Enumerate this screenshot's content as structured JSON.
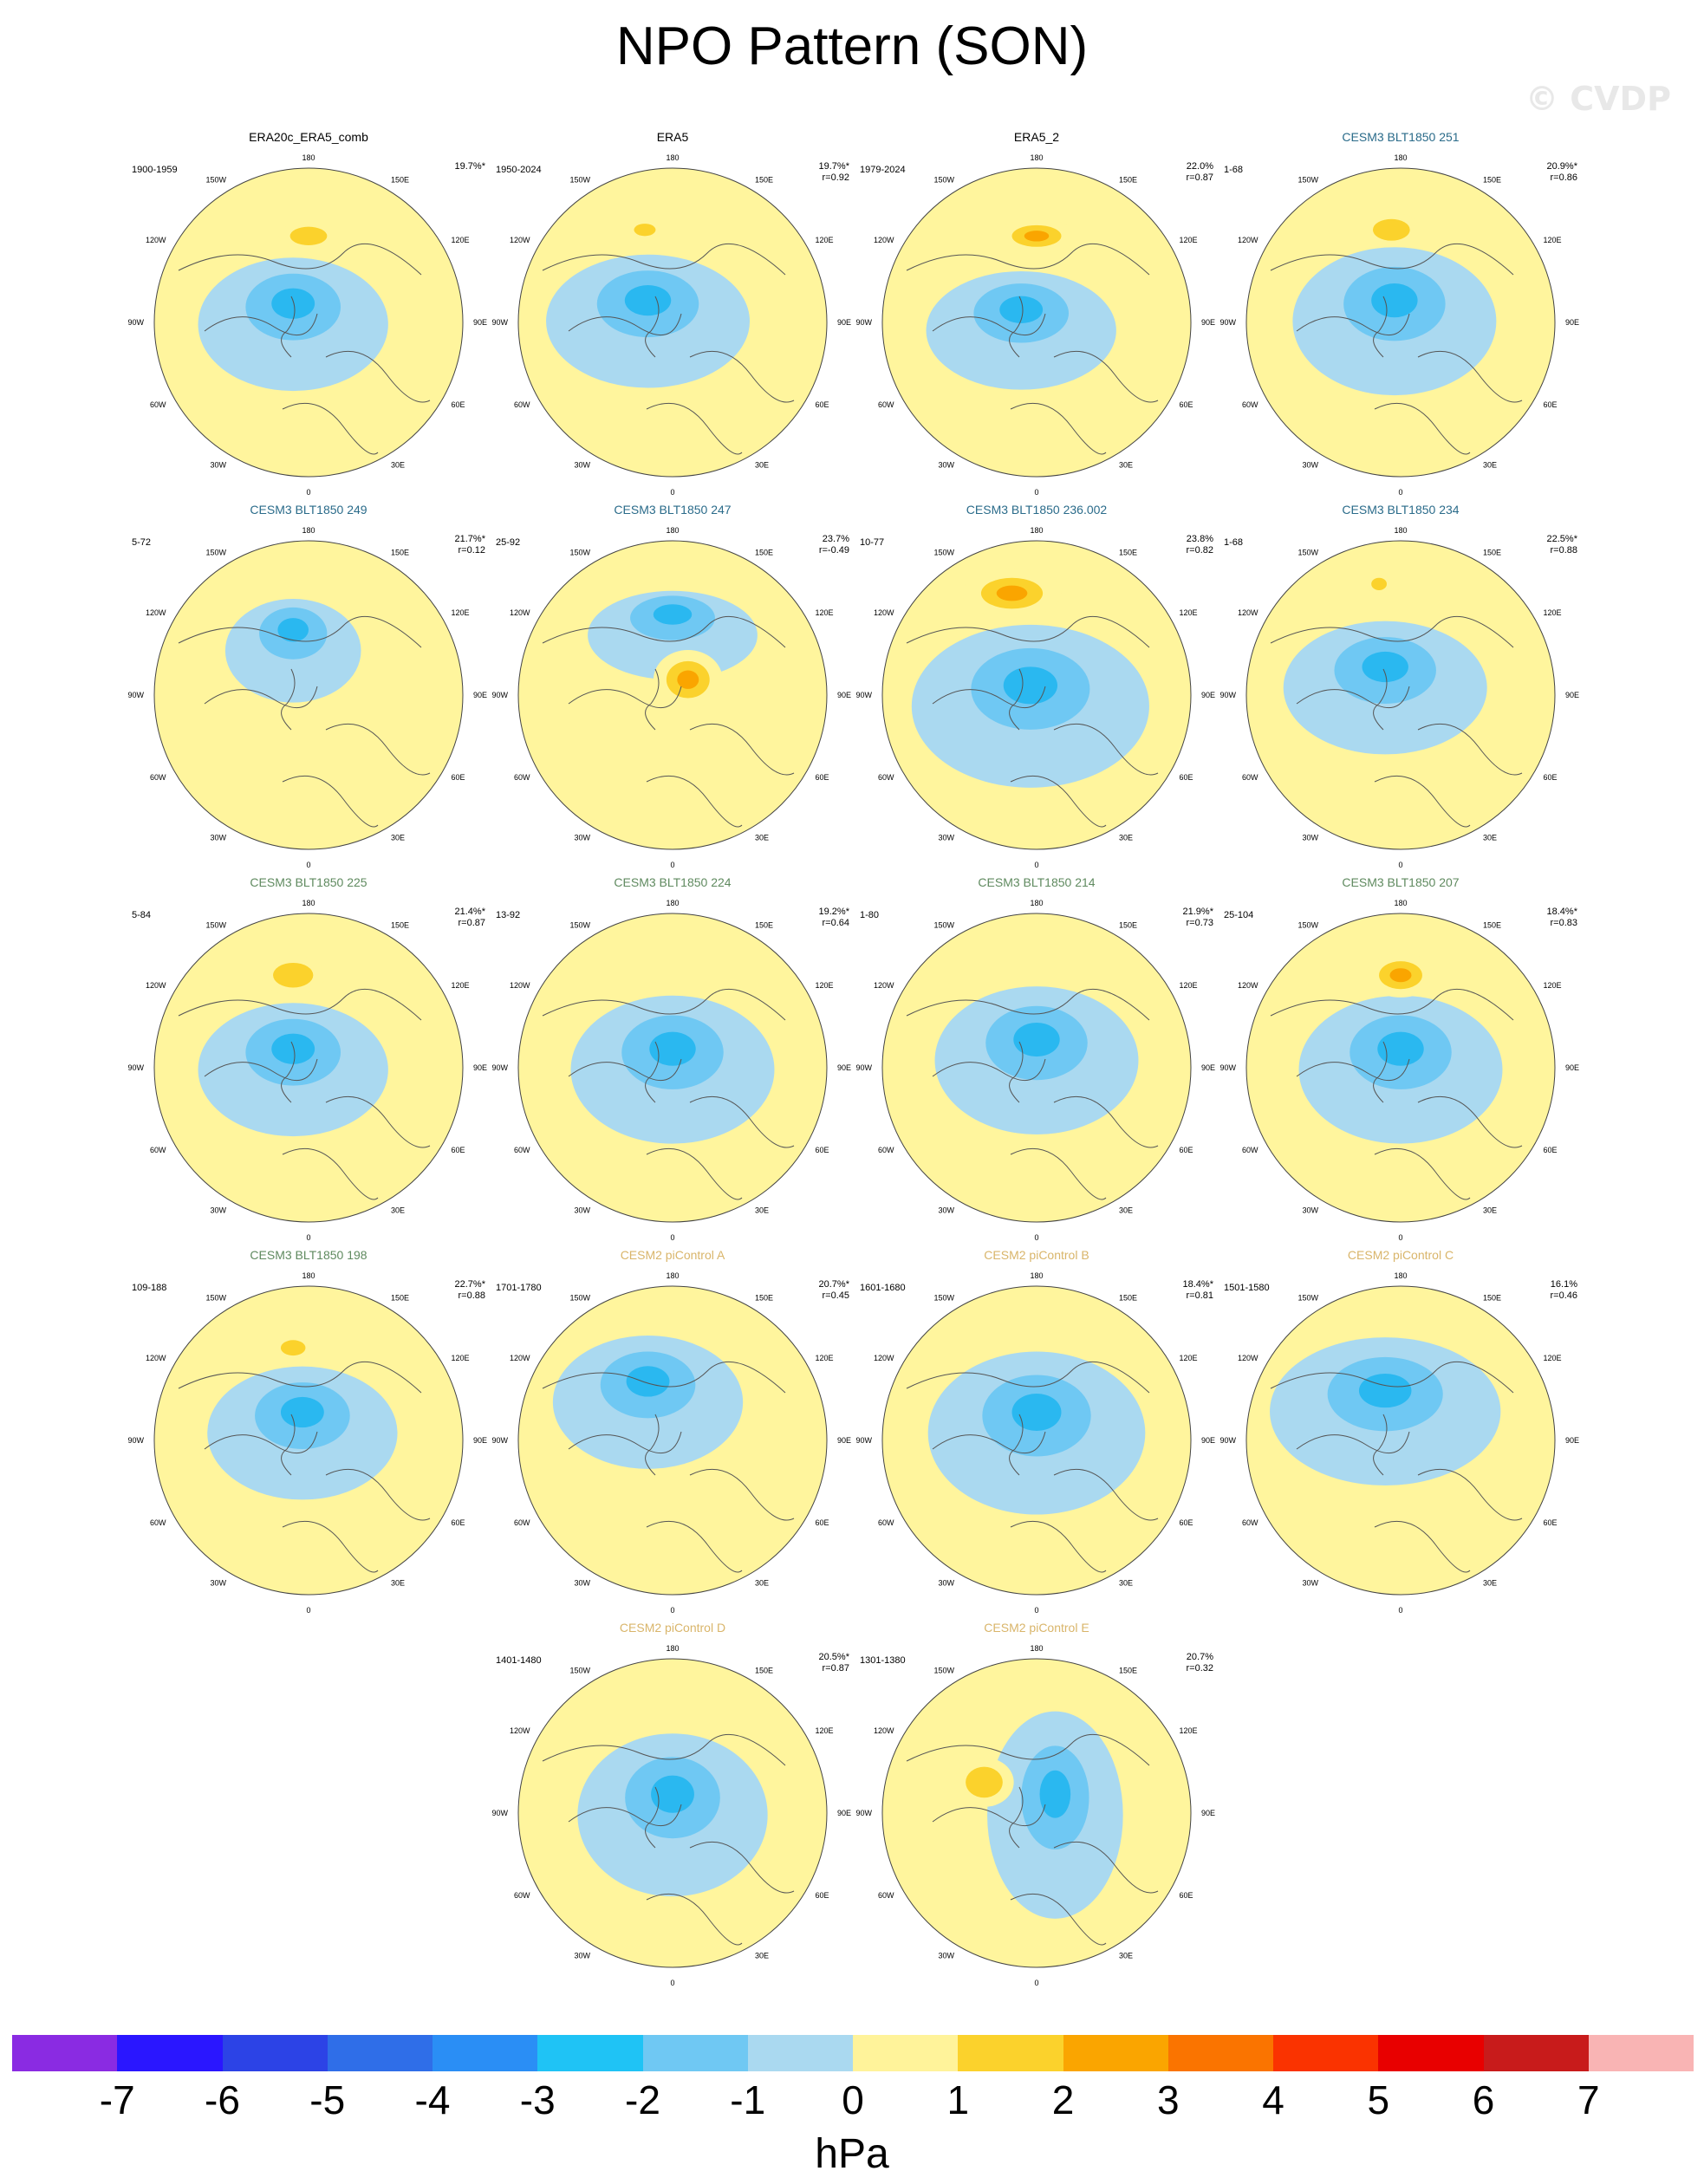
{
  "title": "NPO Pattern (SON)",
  "watermark": "© CVDP",
  "map_labels": {
    "top": "180",
    "bottom": "0",
    "left_top": "150W",
    "left_upper": "120W",
    "left_mid": "90W",
    "left_lower": "60W",
    "left_bottom": "30W",
    "right_top": "150E",
    "right_upper": "120E",
    "right_mid": "90E",
    "right_lower": "60E",
    "right_bottom": "30E"
  },
  "colors": {
    "obs_title": "#000000",
    "cesm3_249_251": "#2a6b8a",
    "cesm3_green": "#5f8a5f",
    "cesm2_gold": "#d9b56a"
  },
  "panels": [
    {
      "title": "ERA20c_ERA5_comb",
      "title_color": "#000000",
      "years": "1900-1959",
      "pct": "19.7%*",
      "r": "",
      "high": [
        0.5,
        0.22,
        0.12,
        0.06
      ],
      "low": [
        [
          0.45,
          0.45,
          0.28,
          0.18
        ]
      ]
    },
    {
      "title": "ERA5",
      "title_color": "#000000",
      "years": "1950-2024",
      "pct": "19.7%*",
      "r": "r=0.92",
      "high": [
        0.41,
        0.2,
        0.07,
        0.04
      ],
      "low": [
        [
          0.42,
          0.44,
          0.3,
          0.18
        ]
      ]
    },
    {
      "title": "ERA5_2",
      "title_color": "#000000",
      "years": "1979-2024",
      "pct": "22.0%",
      "r": "r=0.87",
      "high": [
        0.5,
        0.22,
        0.16,
        0.07
      ],
      "low": [
        [
          0.45,
          0.47,
          0.28,
          0.16
        ]
      ]
    },
    {
      "title": "CESM3 BLT1850 251",
      "title_color": "#2a6b8a",
      "years": "1-68",
      "pct": "20.9%*",
      "r": "r=0.86",
      "high": [
        0.47,
        0.2,
        0.12,
        0.07
      ],
      "low": [
        [
          0.48,
          0.44,
          0.3,
          0.2
        ]
      ]
    },
    {
      "title": "CESM3 BLT1850 249",
      "title_color": "#2a6b8a",
      "years": "5-72",
      "pct": "21.7%*",
      "r": "r=0.12",
      "high": null,
      "low": [
        [
          0.45,
          0.3,
          0.2,
          0.14
        ]
      ]
    },
    {
      "title": "CESM3 BLT1850 247",
      "title_color": "#2a6b8a",
      "years": "25-92",
      "pct": "23.7%",
      "r": "r=-0.49",
      "high": [
        0.55,
        0.45,
        0.14,
        0.12
      ],
      "low": [
        [
          0.5,
          0.25,
          0.25,
          0.12
        ]
      ]
    },
    {
      "title": "CESM3 BLT1850 236.002",
      "title_color": "#2a6b8a",
      "years": "10-77",
      "pct": "23.8%",
      "r": "r=0.82",
      "high": [
        0.42,
        0.17,
        0.2,
        0.1
      ],
      "low": [
        [
          0.48,
          0.48,
          0.35,
          0.22
        ]
      ]
    },
    {
      "title": "CESM3 BLT1850 234",
      "title_color": "#2a6b8a",
      "years": "1-68",
      "pct": "22.5%*",
      "r": "r=0.88",
      "high": [
        0.43,
        0.14,
        0.05,
        0.04
      ],
      "low": [
        [
          0.45,
          0.42,
          0.3,
          0.18
        ]
      ]
    },
    {
      "title": "CESM3 BLT1850 225",
      "title_color": "#5f8a5f",
      "years": "5-84",
      "pct": "21.4%*",
      "r": "r=0.87",
      "high": [
        0.45,
        0.2,
        0.13,
        0.08
      ],
      "low": [
        [
          0.45,
          0.45,
          0.28,
          0.18
        ]
      ]
    },
    {
      "title": "CESM3 BLT1850 224",
      "title_color": "#5f8a5f",
      "years": "13-92",
      "pct": "19.2%*",
      "r": "r=0.64",
      "high": null,
      "low": [
        [
          0.5,
          0.45,
          0.3,
          0.2
        ]
      ]
    },
    {
      "title": "CESM3 BLT1850 214",
      "title_color": "#5f8a5f",
      "years": "1-80",
      "pct": "21.9%*",
      "r": "r=0.73",
      "high": null,
      "low": [
        [
          0.5,
          0.42,
          0.3,
          0.2
        ]
      ]
    },
    {
      "title": "CESM3 BLT1850 207",
      "title_color": "#5f8a5f",
      "years": "25-104",
      "pct": "18.4%*",
      "r": "r=0.83",
      "high": [
        0.5,
        0.2,
        0.14,
        0.09
      ],
      "low": [
        [
          0.5,
          0.45,
          0.3,
          0.2
        ]
      ]
    },
    {
      "title": "CESM3 BLT1850 198",
      "title_color": "#5f8a5f",
      "years": "109-188",
      "pct": "22.7%*",
      "r": "r=0.88",
      "high": [
        0.45,
        0.2,
        0.08,
        0.05
      ],
      "low": [
        [
          0.48,
          0.42,
          0.28,
          0.18
        ]
      ]
    },
    {
      "title": "CESM2 piControl A",
      "title_color": "#d9b56a",
      "years": "1701-1780",
      "pct": "20.7%*",
      "r": "r=0.45",
      "high": null,
      "low": [
        [
          0.42,
          0.32,
          0.28,
          0.18
        ]
      ]
    },
    {
      "title": "CESM2 piControl B",
      "title_color": "#d9b56a",
      "years": "1601-1680",
      "pct": "18.4%*",
      "r": "r=0.81",
      "high": null,
      "low": [
        [
          0.5,
          0.42,
          0.32,
          0.22
        ]
      ]
    },
    {
      "title": "CESM2 piControl C",
      "title_color": "#d9b56a",
      "years": "1501-1580",
      "pct": "16.1%",
      "r": "r=0.46",
      "high": null,
      "low": [
        [
          0.45,
          0.35,
          0.34,
          0.2
        ]
      ]
    },
    {
      "title": "CESM2 piControl D",
      "title_color": "#d9b56a",
      "years": "1401-1480",
      "pct": "20.5%*",
      "r": "r=0.87",
      "high": null,
      "low": [
        [
          0.5,
          0.45,
          0.28,
          0.22
        ]
      ]
    },
    {
      "title": "CESM2 piControl E",
      "title_color": "#d9b56a",
      "years": "1301-1380",
      "pct": "20.7%",
      "r": "r=0.32",
      "high": [
        0.33,
        0.4,
        0.12,
        0.1
      ],
      "low": [
        [
          0.56,
          0.45,
          0.2,
          0.28
        ]
      ]
    }
  ],
  "colorbar": {
    "colors": [
      "#8a2be2",
      "#2a16ff",
      "#2c43e6",
      "#2f6ee8",
      "#2a8ef5",
      "#1fc3f5",
      "#6fc8f3",
      "#aad9f0",
      "#fff39a",
      "#fbd22c",
      "#faa500",
      "#fa7400",
      "#fa3300",
      "#e80000",
      "#c81b1b",
      "#f9b4b4"
    ],
    "ticks": [
      "-7",
      "-6",
      "-5",
      "-4",
      "-3",
      "-2",
      "-1",
      "0",
      "1",
      "2",
      "3",
      "4",
      "5",
      "6",
      "7"
    ],
    "units": "hPa"
  }
}
